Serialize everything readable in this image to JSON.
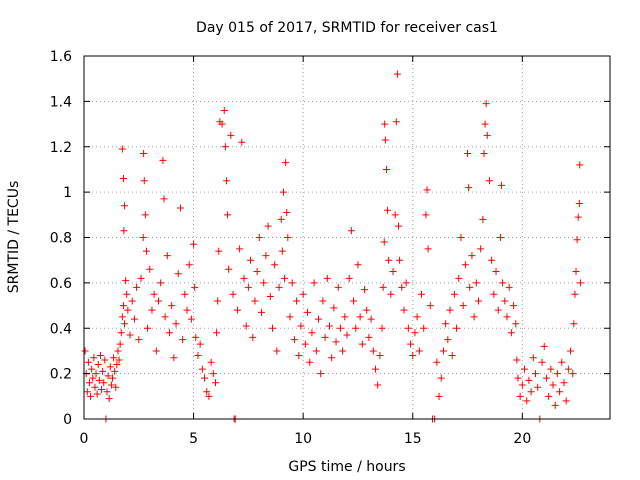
{
  "chart_data": {
    "type": "scatter",
    "title": "Day 015 of 2017, SRMTID for receiver cas1",
    "xlabel": "GPS time / hours",
    "ylabel": "SRMTID / TECUs",
    "xlim": [
      0,
      24
    ],
    "ylim": [
      0,
      1.6
    ],
    "x_ticks": [
      0,
      5,
      10,
      15,
      20
    ],
    "x_tick_labels": [
      "0",
      "5",
      "10",
      "15",
      "20"
    ],
    "y_ticks": [
      0,
      0.2,
      0.4,
      0.6,
      0.8,
      1.0,
      1.2,
      1.4,
      1.6
    ],
    "y_tick_labels": [
      "0",
      "0.2",
      "0.4",
      "0.6",
      "0.8",
      "1",
      "1.2",
      "1.4",
      "1.6"
    ],
    "grid": true,
    "marker": "plus",
    "color": "#ff0000",
    "series": [
      {
        "name": "SRMTID",
        "points": [
          [
            0.05,
            0.3
          ],
          [
            0.1,
            0.2
          ],
          [
            0.15,
            0.12
          ],
          [
            0.2,
            0.25
          ],
          [
            0.25,
            0.16
          ],
          [
            0.3,
            0.1
          ],
          [
            0.35,
            0.22
          ],
          [
            0.4,
            0.18
          ],
          [
            0.45,
            0.27
          ],
          [
            0.5,
            0.14
          ],
          [
            0.55,
            0.2
          ],
          [
            0.6,
            0.11
          ],
          [
            0.65,
            0.24
          ],
          [
            0.7,
            0.17
          ],
          [
            0.75,
            0.28
          ],
          [
            0.8,
            0.13
          ],
          [
            0.85,
            0.21
          ],
          [
            0.9,
            0.16
          ],
          [
            0.95,
            0.26
          ],
          [
            1.0,
            0.0
          ],
          [
            1.05,
            0.12
          ],
          [
            1.1,
            0.19
          ],
          [
            1.15,
            0.09
          ],
          [
            1.2,
            0.23
          ],
          [
            1.25,
            0.15
          ],
          [
            1.3,
            0.18
          ],
          [
            1.35,
            0.27
          ],
          [
            1.4,
            0.21
          ],
          [
            1.45,
            0.14
          ],
          [
            1.5,
            0.24
          ],
          [
            1.55,
            0.3
          ],
          [
            1.6,
            0.26
          ],
          [
            1.65,
            0.33
          ],
          [
            1.7,
            0.38
          ],
          [
            1.75,
            0.45
          ],
          [
            1.8,
            0.5
          ],
          [
            1.85,
            0.42
          ],
          [
            1.9,
            0.61
          ],
          [
            1.95,
            0.55
          ],
          [
            2.0,
            0.48
          ],
          [
            1.75,
            1.19
          ],
          [
            1.8,
            1.06
          ],
          [
            1.85,
            0.94
          ],
          [
            1.82,
            0.83
          ],
          [
            2.1,
            0.37
          ],
          [
            2.2,
            0.52
          ],
          [
            2.3,
            0.44
          ],
          [
            2.4,
            0.58
          ],
          [
            2.5,
            0.35
          ],
          [
            2.6,
            0.62
          ],
          [
            2.7,
            0.8
          ],
          [
            2.72,
            1.17
          ],
          [
            2.75,
            1.05
          ],
          [
            2.8,
            0.9
          ],
          [
            2.85,
            0.74
          ],
          [
            2.9,
            0.4
          ],
          [
            3.0,
            0.66
          ],
          [
            3.1,
            0.48
          ],
          [
            3.2,
            0.55
          ],
          [
            3.3,
            0.3
          ],
          [
            3.4,
            0.52
          ],
          [
            3.5,
            0.6
          ],
          [
            3.6,
            1.14
          ],
          [
            3.65,
            0.97
          ],
          [
            3.7,
            0.45
          ],
          [
            3.8,
            0.72
          ],
          [
            3.9,
            0.38
          ],
          [
            4.0,
            0.5
          ],
          [
            4.1,
            0.27
          ],
          [
            4.2,
            0.42
          ],
          [
            4.3,
            0.64
          ],
          [
            4.4,
            0.93
          ],
          [
            4.5,
            0.35
          ],
          [
            4.6,
            0.55
          ],
          [
            4.7,
            0.48
          ],
          [
            4.8,
            0.68
          ],
          [
            4.9,
            0.44
          ],
          [
            5.0,
            0.77
          ],
          [
            5.05,
            0.58
          ],
          [
            5.1,
            0.36
          ],
          [
            5.2,
            0.28
          ],
          [
            5.3,
            0.33
          ],
          [
            5.4,
            0.22
          ],
          [
            5.5,
            0.18
          ],
          [
            5.6,
            0.12
          ],
          [
            5.7,
            0.1
          ],
          [
            5.8,
            0.25
          ],
          [
            5.9,
            0.2
          ],
          [
            6.0,
            0.16
          ],
          [
            6.05,
            0.38
          ],
          [
            6.1,
            0.52
          ],
          [
            6.15,
            0.74
          ],
          [
            6.2,
            1.31
          ],
          [
            6.3,
            1.3
          ],
          [
            6.4,
            1.36
          ],
          [
            6.45,
            1.2
          ],
          [
            6.5,
            1.05
          ],
          [
            6.55,
            0.9
          ],
          [
            6.6,
            0.66
          ],
          [
            6.7,
            1.25
          ],
          [
            6.8,
            0.55
          ],
          [
            6.85,
            0.0
          ],
          [
            6.9,
            0.0
          ],
          [
            7.0,
            0.48
          ],
          [
            7.1,
            0.75
          ],
          [
            7.2,
            1.22
          ],
          [
            7.3,
            0.62
          ],
          [
            7.4,
            0.41
          ],
          [
            7.5,
            0.58
          ],
          [
            7.6,
            0.7
          ],
          [
            7.7,
            0.36
          ],
          [
            7.8,
            0.52
          ],
          [
            7.9,
            0.65
          ],
          [
            8.0,
            0.8
          ],
          [
            8.1,
            0.47
          ],
          [
            8.2,
            0.6
          ],
          [
            8.3,
            0.72
          ],
          [
            8.4,
            0.85
          ],
          [
            8.5,
            0.54
          ],
          [
            8.6,
            0.4
          ],
          [
            8.7,
            0.68
          ],
          [
            8.8,
            0.3
          ],
          [
            8.9,
            0.58
          ],
          [
            9.0,
            0.88
          ],
          [
            9.05,
            0.74
          ],
          [
            9.1,
            1.0
          ],
          [
            9.15,
            0.62
          ],
          [
            9.2,
            1.13
          ],
          [
            9.25,
            0.91
          ],
          [
            9.3,
            0.8
          ],
          [
            9.4,
            0.45
          ],
          [
            9.5,
            0.6
          ],
          [
            9.6,
            0.35
          ],
          [
            9.7,
            0.52
          ],
          [
            9.8,
            0.28
          ],
          [
            9.9,
            0.41
          ],
          [
            10.0,
            0.55
          ],
          [
            10.1,
            0.33
          ],
          [
            10.2,
            0.47
          ],
          [
            10.3,
            0.25
          ],
          [
            10.4,
            0.38
          ],
          [
            10.5,
            0.6
          ],
          [
            10.6,
            0.3
          ],
          [
            10.7,
            0.44
          ],
          [
            10.8,
            0.2
          ],
          [
            10.9,
            0.52
          ],
          [
            11.0,
            0.36
          ],
          [
            11.1,
            0.62
          ],
          [
            11.2,
            0.41
          ],
          [
            11.3,
            0.27
          ],
          [
            11.4,
            0.49
          ],
          [
            11.5,
            0.34
          ],
          [
            11.6,
            0.58
          ],
          [
            11.7,
            0.4
          ],
          [
            11.8,
            0.3
          ],
          [
            11.9,
            0.45
          ],
          [
            12.0,
            0.37
          ],
          [
            12.1,
            0.62
          ],
          [
            12.2,
            0.83
          ],
          [
            12.3,
            0.52
          ],
          [
            12.4,
            0.4
          ],
          [
            12.5,
            0.68
          ],
          [
            12.6,
            0.45
          ],
          [
            12.7,
            0.33
          ],
          [
            12.8,
            0.57
          ],
          [
            12.9,
            0.48
          ],
          [
            13.0,
            0.36
          ],
          [
            13.1,
            0.44
          ],
          [
            13.2,
            0.3
          ],
          [
            13.3,
            0.22
          ],
          [
            13.4,
            0.15
          ],
          [
            13.5,
            0.28
          ],
          [
            13.6,
            0.4
          ],
          [
            13.65,
            0.58
          ],
          [
            13.7,
            0.78
          ],
          [
            13.72,
            1.3
          ],
          [
            13.75,
            1.23
          ],
          [
            13.8,
            1.1
          ],
          [
            13.85,
            0.92
          ],
          [
            13.9,
            0.7
          ],
          [
            14.0,
            0.55
          ],
          [
            14.1,
            0.65
          ],
          [
            14.2,
            0.9
          ],
          [
            14.25,
            1.31
          ],
          [
            14.3,
            1.52
          ],
          [
            14.35,
            0.85
          ],
          [
            14.4,
            0.7
          ],
          [
            14.5,
            0.58
          ],
          [
            14.6,
            0.48
          ],
          [
            14.7,
            0.6
          ],
          [
            14.8,
            0.4
          ],
          [
            14.9,
            0.33
          ],
          [
            15.0,
            0.28
          ],
          [
            15.1,
            0.38
          ],
          [
            15.2,
            0.45
          ],
          [
            15.3,
            0.3
          ],
          [
            15.4,
            0.55
          ],
          [
            15.5,
            0.4
          ],
          [
            15.6,
            0.9
          ],
          [
            15.65,
            1.01
          ],
          [
            15.7,
            0.75
          ],
          [
            15.8,
            0.5
          ],
          [
            15.9,
            0.0
          ],
          [
            16.0,
            0.0
          ],
          [
            16.1,
            0.25
          ],
          [
            16.2,
            0.1
          ],
          [
            16.3,
            0.18
          ],
          [
            16.4,
            0.3
          ],
          [
            16.5,
            0.42
          ],
          [
            16.6,
            0.35
          ],
          [
            16.7,
            0.48
          ],
          [
            16.8,
            0.28
          ],
          [
            16.9,
            0.55
          ],
          [
            17.0,
            0.4
          ],
          [
            17.1,
            0.62
          ],
          [
            17.2,
            0.8
          ],
          [
            17.3,
            0.5
          ],
          [
            17.4,
            0.68
          ],
          [
            17.5,
            1.17
          ],
          [
            17.55,
            1.02
          ],
          [
            17.6,
            0.58
          ],
          [
            17.7,
            0.72
          ],
          [
            17.8,
            0.45
          ],
          [
            17.9,
            0.6
          ],
          [
            18.0,
            0.52
          ],
          [
            18.1,
            0.75
          ],
          [
            18.2,
            0.88
          ],
          [
            18.25,
            1.17
          ],
          [
            18.3,
            1.3
          ],
          [
            18.35,
            1.39
          ],
          [
            18.4,
            1.25
          ],
          [
            18.5,
            1.05
          ],
          [
            18.6,
            0.7
          ],
          [
            18.7,
            0.55
          ],
          [
            18.8,
            0.65
          ],
          [
            18.9,
            0.48
          ],
          [
            19.0,
            0.8
          ],
          [
            19.05,
            1.03
          ],
          [
            19.1,
            0.6
          ],
          [
            19.2,
            0.52
          ],
          [
            19.3,
            0.45
          ],
          [
            19.4,
            0.58
          ],
          [
            19.5,
            0.38
          ],
          [
            19.6,
            0.5
          ],
          [
            19.7,
            0.42
          ],
          [
            19.75,
            0.26
          ],
          [
            19.8,
            0.18
          ],
          [
            19.9,
            0.1
          ],
          [
            20.0,
            0.15
          ],
          [
            20.1,
            0.22
          ],
          [
            20.2,
            0.08
          ],
          [
            20.3,
            0.17
          ],
          [
            20.4,
            0.12
          ],
          [
            20.5,
            0.27
          ],
          [
            20.6,
            0.2
          ],
          [
            20.7,
            0.14
          ],
          [
            20.8,
            0.0
          ],
          [
            20.9,
            0.25
          ],
          [
            21.0,
            0.32
          ],
          [
            21.1,
            0.18
          ],
          [
            21.2,
            0.1
          ],
          [
            21.3,
            0.22
          ],
          [
            21.4,
            0.15
          ],
          [
            21.5,
            0.06
          ],
          [
            21.6,
            0.2
          ],
          [
            21.7,
            0.12
          ],
          [
            21.8,
            0.25
          ],
          [
            21.9,
            0.16
          ],
          [
            22.0,
            0.08
          ],
          [
            22.1,
            0.22
          ],
          [
            22.2,
            0.3
          ],
          [
            22.3,
            0.2
          ],
          [
            22.35,
            0.42
          ],
          [
            22.4,
            0.55
          ],
          [
            22.45,
            0.65
          ],
          [
            22.5,
            0.79
          ],
          [
            22.55,
            0.89
          ],
          [
            22.6,
            0.95
          ],
          [
            22.62,
            1.12
          ],
          [
            22.65,
            0.6
          ]
        ]
      }
    ]
  }
}
